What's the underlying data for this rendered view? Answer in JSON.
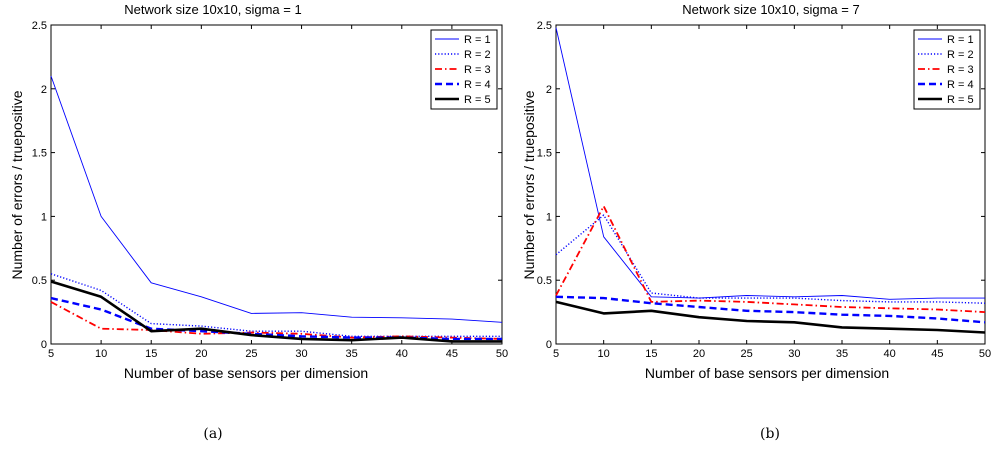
{
  "chart_data": [
    {
      "type": "line",
      "title": "Network size 10x10,  sigma = 1",
      "xlabel": "Number of base sensors per dimension",
      "ylabel": "Number of errors / truepositive",
      "caption": "(a)",
      "x": [
        5,
        10,
        15,
        20,
        25,
        30,
        35,
        40,
        45,
        50
      ],
      "xlim": [
        5,
        50
      ],
      "ylim": [
        0,
        2.5
      ],
      "xticks": [
        "5",
        "10",
        "15",
        "20",
        "25",
        "30",
        "35",
        "40",
        "45",
        "50"
      ],
      "yticks": [
        "0",
        "0.5",
        "1",
        "1.5",
        "2",
        "2.5"
      ],
      "legend_position": "top-right",
      "series": [
        {
          "name": "R = 1",
          "color": "#0000ff",
          "style": "solid",
          "values": [
            2.1,
            1.0,
            0.48,
            0.37,
            0.24,
            0.245,
            0.21,
            0.205,
            0.195,
            0.17
          ]
        },
        {
          "name": "R = 2",
          "color": "#0000ff",
          "style": "dotted",
          "values": [
            0.55,
            0.42,
            0.16,
            0.14,
            0.1,
            0.1,
            0.06,
            0.06,
            0.06,
            0.06
          ]
        },
        {
          "name": "R = 3",
          "color": "#ff0000",
          "style": "dashdot",
          "values": [
            0.33,
            0.12,
            0.11,
            0.08,
            0.09,
            0.08,
            0.05,
            0.06,
            0.05,
            0.04
          ]
        },
        {
          "name": "R = 4",
          "color": "#0000ff",
          "style": "dashed",
          "values": [
            0.36,
            0.27,
            0.12,
            0.1,
            0.08,
            0.06,
            0.05,
            0.05,
            0.04,
            0.04
          ]
        },
        {
          "name": "R = 5",
          "color": "#000000",
          "style": "solid-thick",
          "values": [
            0.49,
            0.37,
            0.1,
            0.12,
            0.07,
            0.04,
            0.03,
            0.05,
            0.02,
            0.02
          ]
        }
      ]
    },
    {
      "type": "line",
      "title": "Network size 10x10, sigma = 7",
      "xlabel": "Number of base sensors per dimension",
      "ylabel": "Number of errors / truepositive",
      "caption": "(b)",
      "x": [
        5,
        10,
        15,
        20,
        25,
        30,
        35,
        40,
        45,
        50
      ],
      "xlim": [
        5,
        50
      ],
      "ylim": [
        0,
        2.5
      ],
      "xticks": [
        "5",
        "10",
        "15",
        "20",
        "25",
        "30",
        "35",
        "40",
        "45",
        "50"
      ],
      "yticks": [
        "0",
        "0.5",
        "1",
        "1.5",
        "2",
        "2.5"
      ],
      "legend_position": "top-right",
      "series": [
        {
          "name": "R = 1",
          "color": "#0000ff",
          "style": "solid",
          "values": [
            2.48,
            0.84,
            0.37,
            0.36,
            0.38,
            0.37,
            0.38,
            0.35,
            0.36,
            0.36
          ]
        },
        {
          "name": "R = 2",
          "color": "#0000ff",
          "style": "dotted",
          "values": [
            0.7,
            1.01,
            0.4,
            0.36,
            0.36,
            0.36,
            0.34,
            0.33,
            0.33,
            0.32
          ]
        },
        {
          "name": "R = 3",
          "color": "#ff0000",
          "style": "dashdot",
          "values": [
            0.38,
            1.08,
            0.33,
            0.34,
            0.33,
            0.31,
            0.29,
            0.28,
            0.27,
            0.25
          ]
        },
        {
          "name": "R = 4",
          "color": "#0000ff",
          "style": "dashed",
          "values": [
            0.37,
            0.36,
            0.32,
            0.29,
            0.26,
            0.25,
            0.23,
            0.22,
            0.2,
            0.17
          ]
        },
        {
          "name": "R = 5",
          "color": "#000000",
          "style": "solid-thick",
          "values": [
            0.33,
            0.24,
            0.26,
            0.21,
            0.18,
            0.17,
            0.13,
            0.12,
            0.11,
            0.09
          ]
        }
      ]
    }
  ]
}
